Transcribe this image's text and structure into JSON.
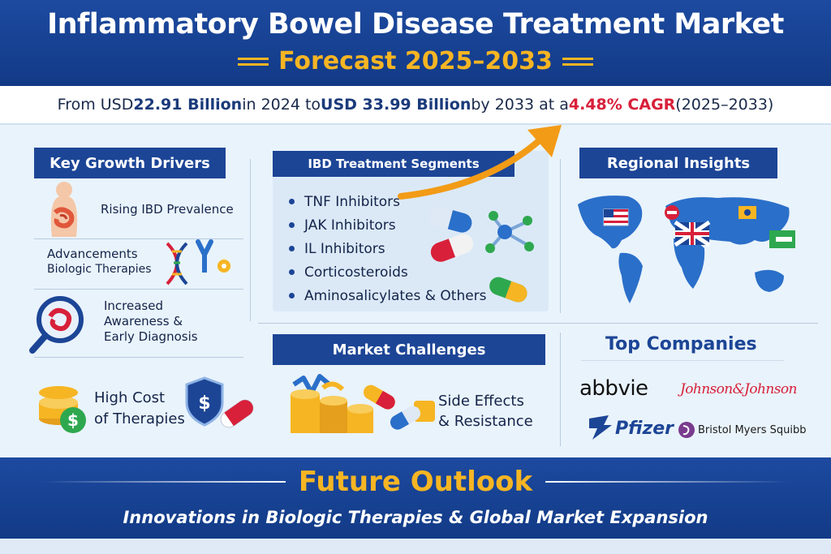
{
  "header": {
    "title": "Inflammatory Bowel Disease Treatment Market",
    "subtitle": "Forecast 2025–2033"
  },
  "summary": {
    "prefix": "From USD ",
    "value_2024": "22.91 Billion",
    "mid1": " in 2024 to ",
    "value_2033": "USD 33.99 Billion",
    "mid2": " by 2033 at a ",
    "cagr_value": "4.48",
    "cagr_suffix": "% CAGR",
    "period": " (2025–2033)"
  },
  "drivers": {
    "heading": "Key Growth Drivers",
    "items": {
      "prevalence": "Rising IBD Prevalence",
      "biologic_line1": "Advancements",
      "biologic_line2": "Biologic Therapies",
      "awareness_line1": "Increased",
      "awareness_line2": "Awareness &",
      "awareness_line3": "Early Diagnosis",
      "cost_line1": "High Cost",
      "cost_line2": "of Therapies"
    }
  },
  "segments": {
    "heading": "IBD Treatment Segments",
    "items": [
      "TNF Inhibitors",
      "JAK Inhibitors",
      "IL Inhibitors",
      "Corticosteroids",
      "Aminosalicylates & Others"
    ]
  },
  "regional": {
    "heading": "Regional Insights"
  },
  "challenges": {
    "heading": "Market Challenges",
    "side_line1": "Side Effects",
    "side_line2": "& Resistance"
  },
  "companies": {
    "heading": "Top Companies",
    "abbvie": "abbvie",
    "jnj": "Johnson&Johnson",
    "pfizer": "Pfizer",
    "bms": "Bristol Myers Squibb"
  },
  "footer": {
    "title": "Future Outlook",
    "subtitle": "Innovations in Biologic Therapies & Global  Market Expansion"
  },
  "colors": {
    "navy": "#1c4596",
    "gold": "#f6b523",
    "red": "#d8203a",
    "light_panel": "#dbe9f7"
  }
}
